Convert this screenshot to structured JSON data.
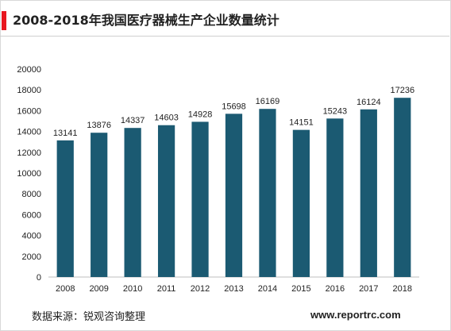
{
  "page": {
    "title": "2008-2018年我国医疗器械生产企业数量统计",
    "source": "数据来源：锐观咨询整理",
    "website": "www.reportrc.com",
    "accent_color": "#e8171f"
  },
  "chart_data": {
    "type": "bar",
    "title": "2008-2018年我国医疗器械生产企业数量统计",
    "xlabel": "",
    "ylabel": "",
    "categories": [
      "2008",
      "2009",
      "2010",
      "2011",
      "2012",
      "2013",
      "2014",
      "2015",
      "2016",
      "2017",
      "2018"
    ],
    "values": [
      13141,
      13876,
      14337,
      14603,
      14928,
      15698,
      16169,
      14151,
      15243,
      16124,
      17236
    ],
    "ylim": [
      0,
      20000
    ],
    "yticks": [
      0,
      2000,
      4000,
      6000,
      8000,
      10000,
      12000,
      14000,
      16000,
      18000,
      20000
    ],
    "grid": false,
    "data_labels": true,
    "bar_color": "#1b5a72"
  }
}
